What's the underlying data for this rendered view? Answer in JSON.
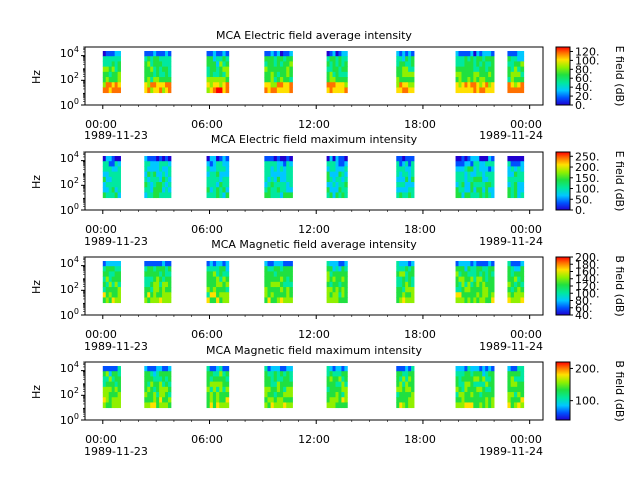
{
  "chart_data": [
    {
      "type": "heatmap",
      "title": "MCA  Electric field average intensity",
      "ylabel": "Hz",
      "yscale": "log",
      "ylim": [
        1,
        50000
      ],
      "ytick_labels": [
        "10^0",
        "10^2",
        "10^4"
      ],
      "xtick_labels": [
        "00:00",
        "06:00",
        "12:00",
        "18:00",
        "00:00"
      ],
      "xdate_labels": [
        "1989-11-23",
        "1989-11-24"
      ],
      "xlim": [
        "1989-11-22T23:00",
        "1989-11-24T00:45"
      ],
      "data_intervals": [
        [
          "1989-11-23T00:00",
          "1989-11-23T01:00"
        ],
        [
          "1989-11-23T02:20",
          "1989-11-23T03:50"
        ],
        [
          "1989-11-23T05:50",
          "1989-11-23T07:05"
        ],
        [
          "1989-11-23T09:05",
          "1989-11-23T10:40"
        ],
        [
          "1989-11-23T12:35",
          "1989-11-23T13:45"
        ],
        [
          "1989-11-23T16:30",
          "1989-11-23T17:30"
        ],
        [
          "1989-11-23T19:50",
          "1989-11-23T22:00"
        ],
        [
          "1989-11-23T22:45",
          "1989-11-23T23:40"
        ]
      ],
      "colorbar": {
        "label": "E field (dB)",
        "range": [
          0,
          130
        ],
        "tick_labels": [
          "0.",
          "20.",
          "40.",
          "60.",
          "80.",
          "100.",
          "120."
        ]
      }
    },
    {
      "type": "heatmap",
      "title": "MCA  Electric field maximum intensity",
      "ylabel": "Hz",
      "yscale": "log",
      "ylim": [
        1,
        50000
      ],
      "ytick_labels": [
        "10^0",
        "10^2",
        "10^4"
      ],
      "xtick_labels": [
        "00:00",
        "06:00",
        "12:00",
        "18:00",
        "00:00"
      ],
      "xdate_labels": [
        "1989-11-23",
        "1989-11-24"
      ],
      "xlim": [
        "1989-11-22T23:00",
        "1989-11-24T00:45"
      ],
      "data_intervals": [
        [
          "1989-11-23T00:00",
          "1989-11-23T01:00"
        ],
        [
          "1989-11-23T02:20",
          "1989-11-23T03:50"
        ],
        [
          "1989-11-23T05:50",
          "1989-11-23T07:05"
        ],
        [
          "1989-11-23T09:05",
          "1989-11-23T10:40"
        ],
        [
          "1989-11-23T12:35",
          "1989-11-23T13:45"
        ],
        [
          "1989-11-23T16:30",
          "1989-11-23T17:30"
        ],
        [
          "1989-11-23T19:50",
          "1989-11-23T22:00"
        ],
        [
          "1989-11-23T22:45",
          "1989-11-23T23:40"
        ]
      ],
      "colorbar": {
        "label": "E field (dB)",
        "range": [
          0,
          270
        ],
        "tick_labels": [
          "0.",
          "50.",
          "100.",
          "150.",
          "200.",
          "250."
        ]
      }
    },
    {
      "type": "heatmap",
      "title": "MCA  Magnetic field average intensity",
      "ylabel": "Hz",
      "yscale": "log",
      "ylim": [
        1,
        50000
      ],
      "ytick_labels": [
        "10^0",
        "10^2",
        "10^4"
      ],
      "xtick_labels": [
        "00:00",
        "06:00",
        "12:00",
        "18:00",
        "00:00"
      ],
      "xdate_labels": [
        "1989-11-23",
        "1989-11-24"
      ],
      "xlim": [
        "1989-11-22T23:00",
        "1989-11-24T00:45"
      ],
      "data_intervals": [
        [
          "1989-11-23T00:00",
          "1989-11-23T01:00"
        ],
        [
          "1989-11-23T02:20",
          "1989-11-23T03:50"
        ],
        [
          "1989-11-23T05:50",
          "1989-11-23T07:05"
        ],
        [
          "1989-11-23T09:05",
          "1989-11-23T10:40"
        ],
        [
          "1989-11-23T12:35",
          "1989-11-23T13:45"
        ],
        [
          "1989-11-23T16:30",
          "1989-11-23T17:30"
        ],
        [
          "1989-11-23T19:50",
          "1989-11-23T22:00"
        ],
        [
          "1989-11-23T22:45",
          "1989-11-23T23:40"
        ]
      ],
      "colorbar": {
        "label": "B field (dB)",
        "range": [
          40,
          200
        ],
        "tick_labels": [
          "40.",
          "60.",
          "80.",
          "100.",
          "120.",
          "140.",
          "160.",
          "180.",
          "200."
        ]
      }
    },
    {
      "type": "heatmap",
      "title": "MCA  Magnetic field maximum intensity",
      "ylabel": "Hz",
      "yscale": "log",
      "ylim": [
        1,
        50000
      ],
      "ytick_labels": [
        "10^0",
        "10^2",
        "10^4"
      ],
      "xtick_labels": [
        "00:00",
        "06:00",
        "12:00",
        "18:00",
        "00:00"
      ],
      "xdate_labels": [
        "1989-11-23",
        "1989-11-24"
      ],
      "xlim": [
        "1989-11-22T23:00",
        "1989-11-24T00:45"
      ],
      "data_intervals": [
        [
          "1989-11-23T00:00",
          "1989-11-23T01:00"
        ],
        [
          "1989-11-23T02:20",
          "1989-11-23T03:50"
        ],
        [
          "1989-11-23T05:50",
          "1989-11-23T07:05"
        ],
        [
          "1989-11-23T09:05",
          "1989-11-23T10:40"
        ],
        [
          "1989-11-23T12:35",
          "1989-11-23T13:45"
        ],
        [
          "1989-11-23T16:30",
          "1989-11-23T17:30"
        ],
        [
          "1989-11-23T19:50",
          "1989-11-23T22:00"
        ],
        [
          "1989-11-23T22:45",
          "1989-11-23T23:40"
        ]
      ],
      "colorbar": {
        "label": "B field (dB)",
        "range": [
          40,
          220
        ],
        "tick_labels": [
          "100.",
          "200."
        ]
      }
    }
  ]
}
